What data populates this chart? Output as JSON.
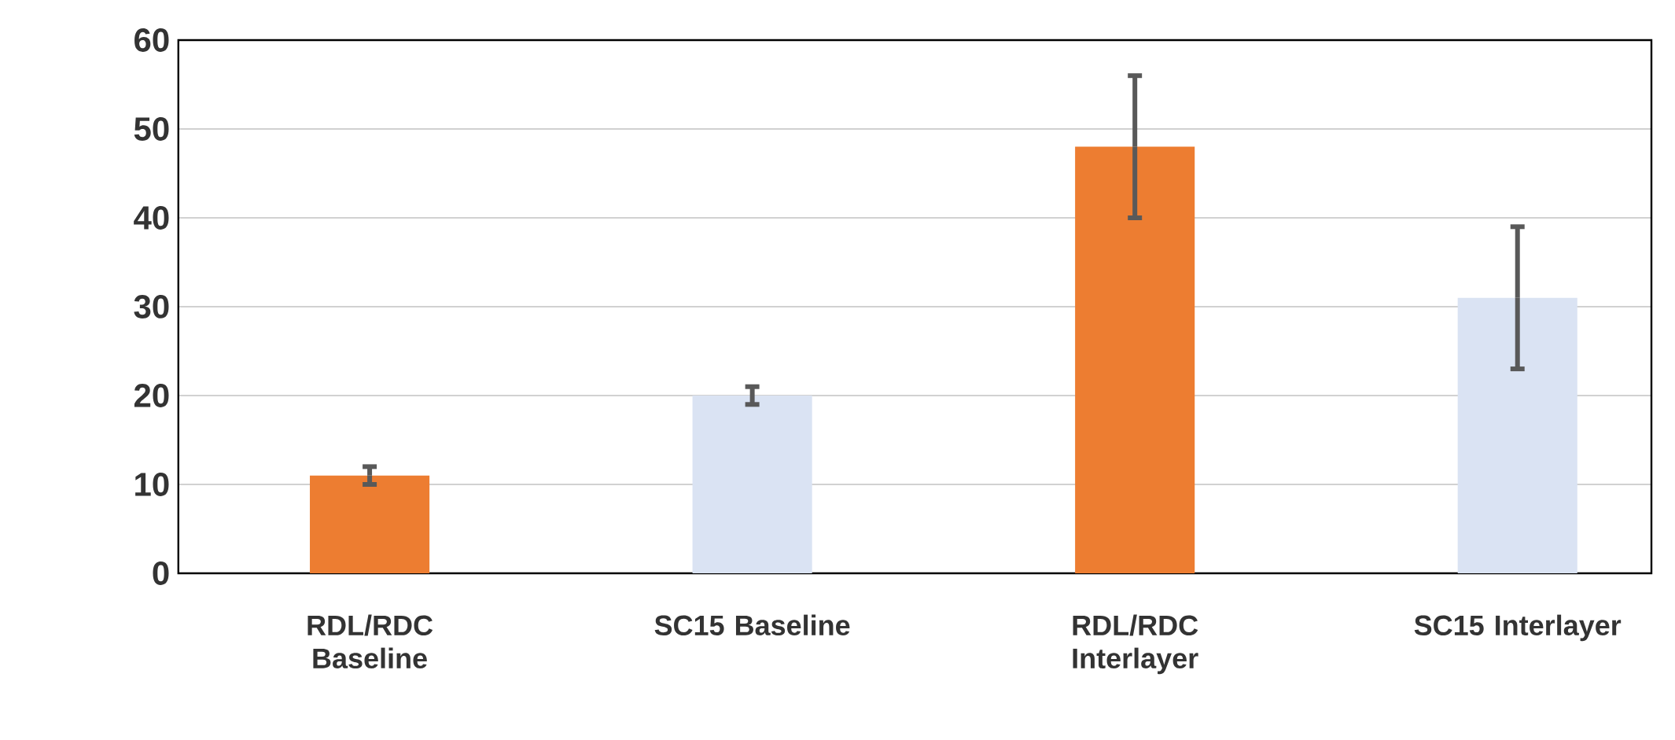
{
  "chart_data": {
    "type": "bar",
    "categories": [
      "RDL/RDC Baseline",
      "SC15 Baseline",
      "RDL/RDC Interlayer",
      "SC15 Interlayer"
    ],
    "values": [
      11,
      20,
      48,
      31
    ],
    "errors": [
      1,
      1,
      8,
      8
    ],
    "colors": [
      "#ed7d31",
      "#dae3f3",
      "#ed7d31",
      "#dae3f3"
    ],
    "ylim": [
      0,
      60
    ],
    "yticks": [
      0,
      10,
      20,
      30,
      40,
      50,
      60
    ],
    "grid": "y"
  }
}
